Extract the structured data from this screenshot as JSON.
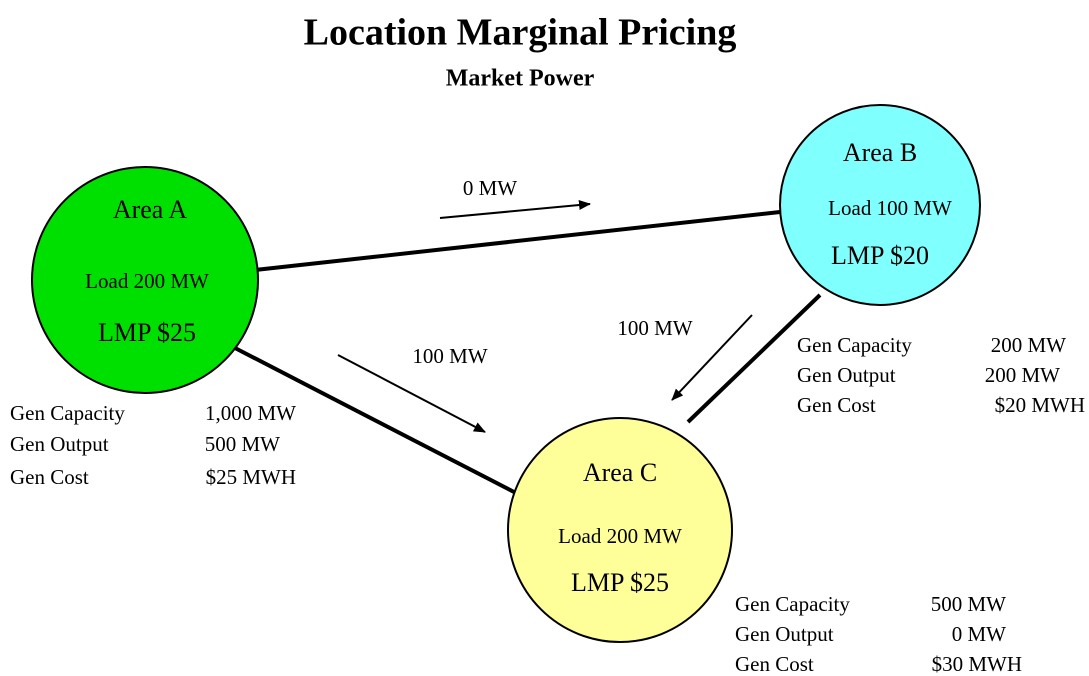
{
  "header": {
    "title": "Location Marginal Pricing",
    "subtitle": "Market Power"
  },
  "nodes": [
    {
      "label": "Area A",
      "load": "Load  200 MW",
      "lmp": "LMP $25",
      "gen": [
        {
          "label": "Gen Capacity",
          "value": "1,000 MW"
        },
        {
          "label": "Gen Output",
          "value": "500 MW"
        },
        {
          "label": "Gen Cost",
          "value": "$25 MWH"
        }
      ]
    },
    {
      "label": "Area B",
      "load": "Load 100 MW",
      "lmp": "LMP $20",
      "gen": [
        {
          "label": "Gen Capacity",
          "value": "200 MW"
        },
        {
          "label": "Gen Output",
          "value": "200 MW"
        },
        {
          "label": "Gen Cost",
          "value": "$20 MWH"
        }
      ]
    },
    {
      "label": "Area C",
      "load": "Load 200 MW",
      "lmp": "LMP $25",
      "gen": [
        {
          "label": "Gen Capacity",
          "value": "500 MW"
        },
        {
          "label": "Gen Output",
          "value": "0 MW"
        },
        {
          "label": "Gen Cost",
          "value": "$30 MWH"
        }
      ]
    }
  ],
  "flows": [
    {
      "label": "0 MW"
    },
    {
      "label": "100 MW"
    },
    {
      "label": "100 MW"
    }
  ]
}
